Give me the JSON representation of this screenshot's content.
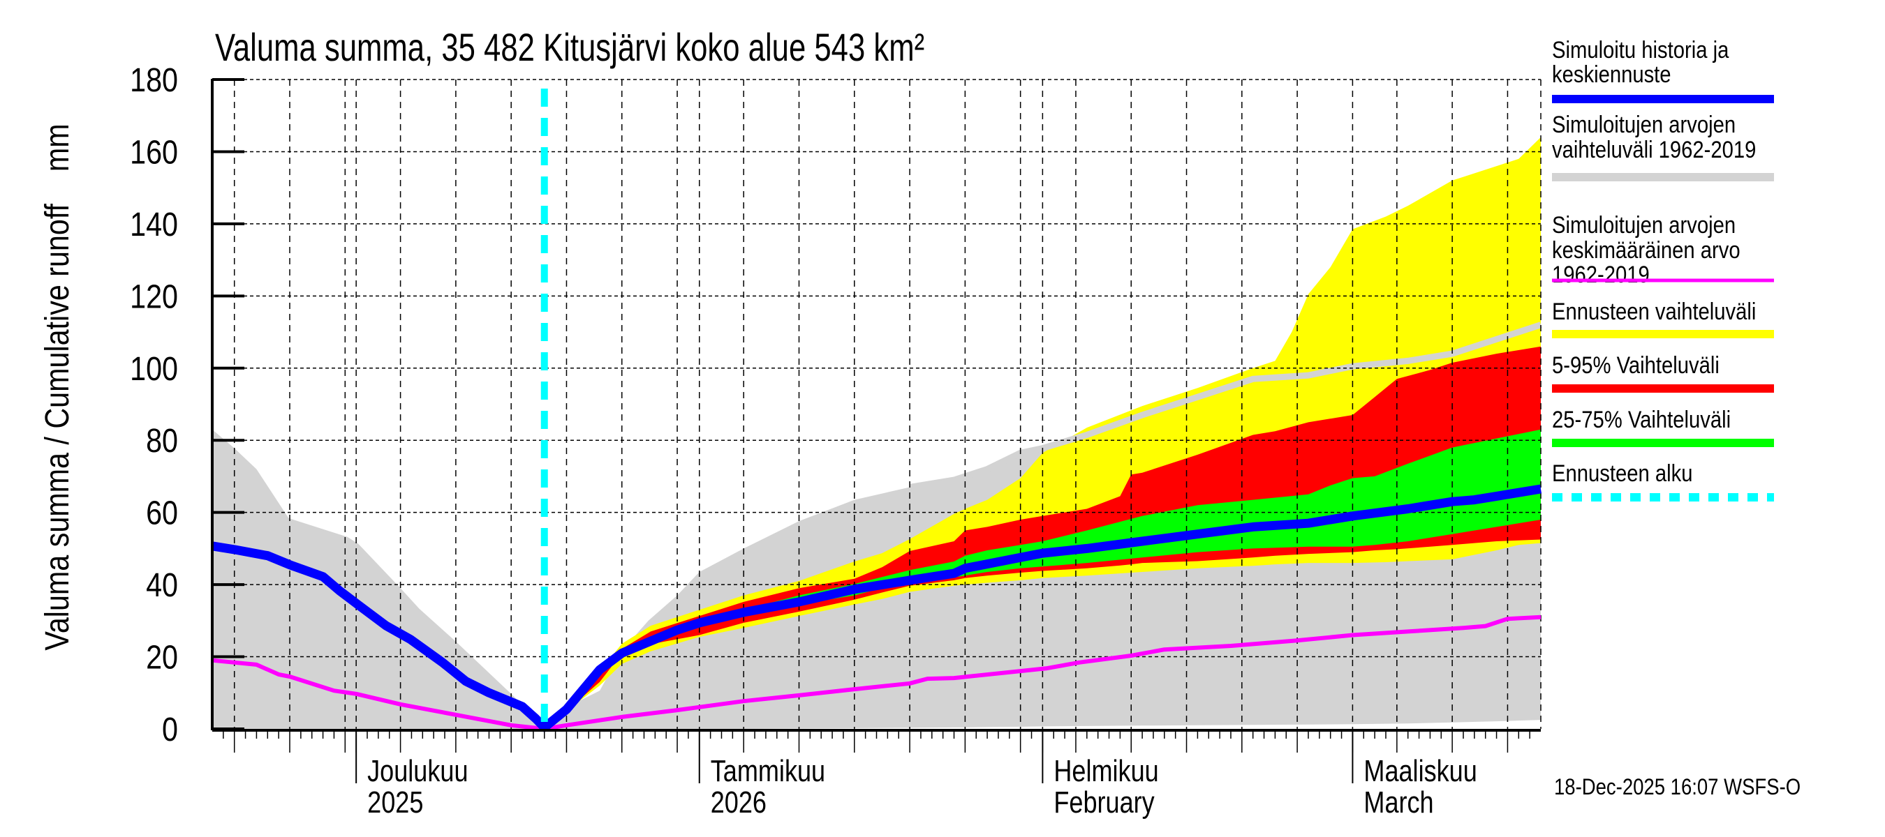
{
  "chart_data": {
    "type": "area",
    "title": "Valuma summa, 35 482 Kitusjärvi koko alue 543 km²",
    "ylabel": "Valuma summa / Cumulative runoff    mm",
    "xlabel": "",
    "x_unit": "days since 18-Nov-2025",
    "xlim": [
      0,
      120
    ],
    "ylim": [
      0,
      180
    ],
    "grid": true,
    "legend_position": "right",
    "y_ticks": [
      0,
      20,
      40,
      60,
      80,
      100,
      120,
      140,
      160,
      180
    ],
    "y_tick_labels": [
      "0",
      "20",
      "40",
      "60",
      "80",
      "100",
      "120",
      "140",
      "160",
      "180"
    ],
    "x_gridline_days": [
      2,
      7,
      12,
      13,
      17,
      22,
      27,
      32,
      37,
      42,
      44,
      48,
      53,
      58,
      63,
      68,
      73,
      75,
      78,
      83,
      88,
      93,
      98,
      103,
      107,
      112,
      117
    ],
    "month_ticks": [
      {
        "day": 13,
        "line1": "Joulukuu",
        "line2": "2025"
      },
      {
        "day": 44,
        "line1": "Tammikuu",
        "line2": "2026"
      },
      {
        "day": 75,
        "line1": "Helmikuu",
        "line2": "February"
      },
      {
        "day": 103,
        "line1": "Maaliskuu",
        "line2": "March"
      }
    ],
    "forecast_start_day": 30,
    "series": [
      {
        "name": "Simuloitujen arvojen vaihteluväli 1962-2019",
        "kind": "band",
        "color": "#d3d3d3",
        "x": [
          0,
          2,
          4,
          6.9,
          12.2,
          13.2,
          17,
          18.7,
          22,
          26,
          28.2,
          29.6,
          30,
          32,
          35,
          37,
          39.4,
          42,
          44,
          48,
          53,
          58,
          63,
          67,
          68,
          70,
          73,
          75,
          79,
          84,
          89,
          94,
          99,
          103,
          108,
          112,
          116,
          120
        ],
        "upper": [
          83,
          77.8,
          72,
          58.4,
          53.2,
          51.3,
          39,
          33.3,
          24.2,
          12.6,
          6.2,
          1.5,
          0.5,
          6,
          10.6,
          21.7,
          30,
          37,
          43.5,
          50,
          57.6,
          63.5,
          67,
          69,
          70,
          72,
          76.5,
          77.8,
          81.5,
          87,
          92,
          97,
          98,
          100.5,
          102,
          104,
          108,
          112
        ],
        "lower": [
          0,
          0,
          0,
          0,
          0,
          0,
          0,
          0,
          0,
          0,
          0,
          0,
          0,
          0,
          0,
          0,
          0,
          0,
          0,
          0,
          0.1,
          0.2,
          0.3,
          0.4,
          0.4,
          0.5,
          0.6,
          0.7,
          0.8,
          0.9,
          1.0,
          1.1,
          1.2,
          1.3,
          1.5,
          1.8,
          2.1,
          2.5
        ]
      },
      {
        "name": "Ennusteen vaihteluväli",
        "kind": "band",
        "color": "#ffff00",
        "x": [
          30,
          32,
          35,
          37,
          39.6,
          44,
          48,
          53,
          58,
          60.5,
          63,
          67,
          68,
          70,
          73,
          75,
          79,
          84,
          89,
          94,
          96,
          97.5,
          99,
          101,
          103,
          106,
          108,
          112,
          116,
          118,
          120
        ],
        "upper": [
          0,
          6,
          16,
          23.6,
          28.6,
          33,
          37,
          41,
          46.4,
          48.7,
          52.6,
          59.6,
          61,
          63.5,
          69.5,
          76.5,
          83.5,
          89.5,
          94.5,
          100,
          102,
          110,
          120.5,
          128,
          138.5,
          142,
          145,
          152,
          156,
          158,
          164
        ],
        "lower": [
          0,
          5,
          12,
          18,
          21.5,
          25.5,
          28,
          31.3,
          34.5,
          36,
          38,
          39.7,
          40,
          40.5,
          41.2,
          41.8,
          42.5,
          43.5,
          44.5,
          45.2,
          45.6,
          45.8,
          46,
          46,
          46,
          46.2,
          46.5,
          47,
          49.5,
          51,
          51.5
        ]
      },
      {
        "name": "5-95% Vaihteluväli",
        "kind": "band",
        "color": "#ff0000",
        "x": [
          30,
          32,
          35,
          37,
          39.6,
          44,
          48,
          53,
          58,
          60.5,
          63,
          67,
          68,
          70,
          73,
          75,
          79,
          82,
          83,
          84,
          89,
          94,
          96,
          99,
          103,
          105,
          107,
          110,
          112,
          116,
          120
        ],
        "upper": [
          0,
          5.5,
          15,
          22.2,
          27,
          31.3,
          35.2,
          39,
          41.6,
          44.8,
          49.3,
          52,
          55,
          56,
          58,
          59,
          61,
          64.5,
          70.5,
          71,
          76,
          81.5,
          82.5,
          85,
          87,
          92,
          97,
          99.5,
          101.5,
          104,
          106
        ],
        "lower": [
          0,
          5,
          13,
          21,
          23.5,
          26,
          29.4,
          32.5,
          35.8,
          37.8,
          39.7,
          41.2,
          41.8,
          42.5,
          43.3,
          43.8,
          44.5,
          45.3,
          45.6,
          46,
          46.5,
          47.5,
          48,
          48.5,
          49,
          49.5,
          49.8,
          50.5,
          51,
          52,
          52.5
        ]
      },
      {
        "name": "25-75% Vaihteluväli",
        "kind": "band",
        "color": "#00ff00",
        "x": [
          30,
          35,
          39.6,
          44,
          48,
          53,
          58,
          63,
          67,
          68,
          70,
          73,
          75,
          79,
          84,
          89,
          94,
          99,
          101,
          103,
          105,
          108,
          112,
          116,
          120
        ],
        "upper": [
          0,
          16.6,
          25.5,
          30,
          33,
          37,
          40.2,
          44,
          46.4,
          48,
          49.5,
          51,
          52,
          55,
          59,
          62,
          63.5,
          65,
          67.5,
          69.5,
          70,
          73.5,
          78,
          80.5,
          83
        ],
        "lower": [
          0,
          16.2,
          25,
          29,
          31.8,
          34.5,
          37,
          41,
          42,
          42.5,
          43.5,
          44.5,
          45,
          46,
          47.5,
          49,
          50,
          50.5,
          50.5,
          50.5,
          51,
          52,
          54,
          56,
          58
        ]
      },
      {
        "name": "Simuloitujen arvojen keskimääräinen arvo 1962-2019",
        "kind": "line",
        "color": "#ff00ff",
        "x": [
          0,
          2,
          4,
          6,
          7,
          11,
          13,
          17,
          22,
          27,
          30,
          32,
          37,
          42,
          48,
          53,
          58,
          63,
          64.6,
          67,
          75.4,
          78.3,
          83,
          86,
          92,
          98,
          103,
          108,
          113,
          115,
          117,
          120
        ],
        "y": [
          19,
          18.4,
          17.8,
          15.1,
          14.5,
          10.6,
          9.7,
          6.8,
          3.9,
          1,
          0,
          1,
          3.3,
          5.2,
          7.7,
          9.3,
          11,
          12.6,
          13.9,
          14.1,
          16.8,
          18.4,
          20.3,
          22,
          23,
          24.5,
          26,
          27,
          28,
          28.5,
          30.5,
          31
        ]
      },
      {
        "name": "Simuloitu historia ja keskiennuste",
        "kind": "line",
        "color": "#0000ff",
        "x": [
          0,
          2,
          5,
          7,
          10,
          11.5,
          13,
          15.7,
          17.9,
          20.8,
          22.9,
          25,
          28,
          29.2,
          30,
          32,
          35,
          37,
          42,
          44,
          48,
          53,
          58,
          63,
          67,
          68,
          73,
          75,
          79,
          84,
          89,
          94,
          99,
          103,
          108,
          110,
          112,
          114,
          116,
          120
        ],
        "y": [
          50.7,
          49.7,
          48,
          45.5,
          42.2,
          38.3,
          34.8,
          28.6,
          24.8,
          18.4,
          13.2,
          10,
          6.2,
          2.9,
          0.4,
          5.4,
          16.4,
          21,
          27.4,
          29.4,
          32.3,
          35.2,
          38.7,
          41.2,
          43.1,
          44.5,
          47.5,
          48.7,
          50,
          52,
          54,
          56,
          57,
          59,
          61,
          62,
          63,
          63.5,
          64.5,
          66.5
        ]
      }
    ],
    "legend": [
      {
        "lines": [
          "Simuloitu historia ja",
          "keskiennuste"
        ],
        "color": "#0000ff",
        "style": "thick"
      },
      {
        "lines": [
          "Simuloitujen arvojen",
          "vaihteluväli 1962-2019"
        ],
        "color": "#d3d3d3",
        "style": "thick"
      },
      {
        "lines": [
          "Simuloitujen arvojen",
          "keskimääräinen arvo",
          "   1962-2019"
        ],
        "color": "#ff00ff",
        "style": "thin"
      },
      {
        "lines": [
          "Ennusteen vaihteluväli"
        ],
        "color": "#ffff00",
        "style": "thick"
      },
      {
        "lines": [
          "5-95% Vaihteluväli"
        ],
        "color": "#ff0000",
        "style": "thick"
      },
      {
        "lines": [
          "25-75% Vaihteluväli"
        ],
        "color": "#00ff00",
        "style": "thick"
      },
      {
        "lines": [
          "Ennusteen alku"
        ],
        "color": "#00ffff",
        "style": "dashed"
      }
    ],
    "footer": "18-Dec-2025 16:07 WSFS-O"
  }
}
